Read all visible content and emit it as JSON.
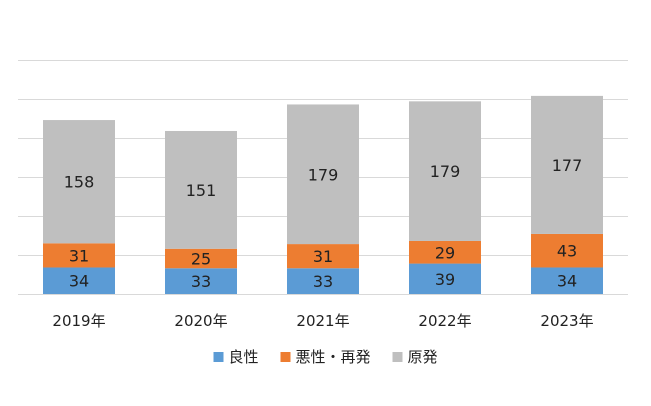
{
  "chart_data": {
    "type": "bar",
    "stacked": true,
    "categories": [
      "2019年",
      "2020年",
      "2021年",
      "2022年",
      "2023年"
    ],
    "series": [
      {
        "name": "良性",
        "color": "#5B9BD5",
        "values": [
          34,
          33,
          33,
          39,
          34
        ]
      },
      {
        "name": "悪性・再発",
        "color": "#ED7D31",
        "values": [
          31,
          25,
          31,
          29,
          43
        ]
      },
      {
        "name": "原発",
        "color": "#BFBFBF",
        "values": [
          158,
          151,
          179,
          179,
          177
        ]
      }
    ],
    "title": "",
    "xlabel": "",
    "ylabel": "",
    "ylim": [
      0,
      300
    ],
    "grid": true,
    "legend_position": "bottom",
    "data_labels": true
  }
}
